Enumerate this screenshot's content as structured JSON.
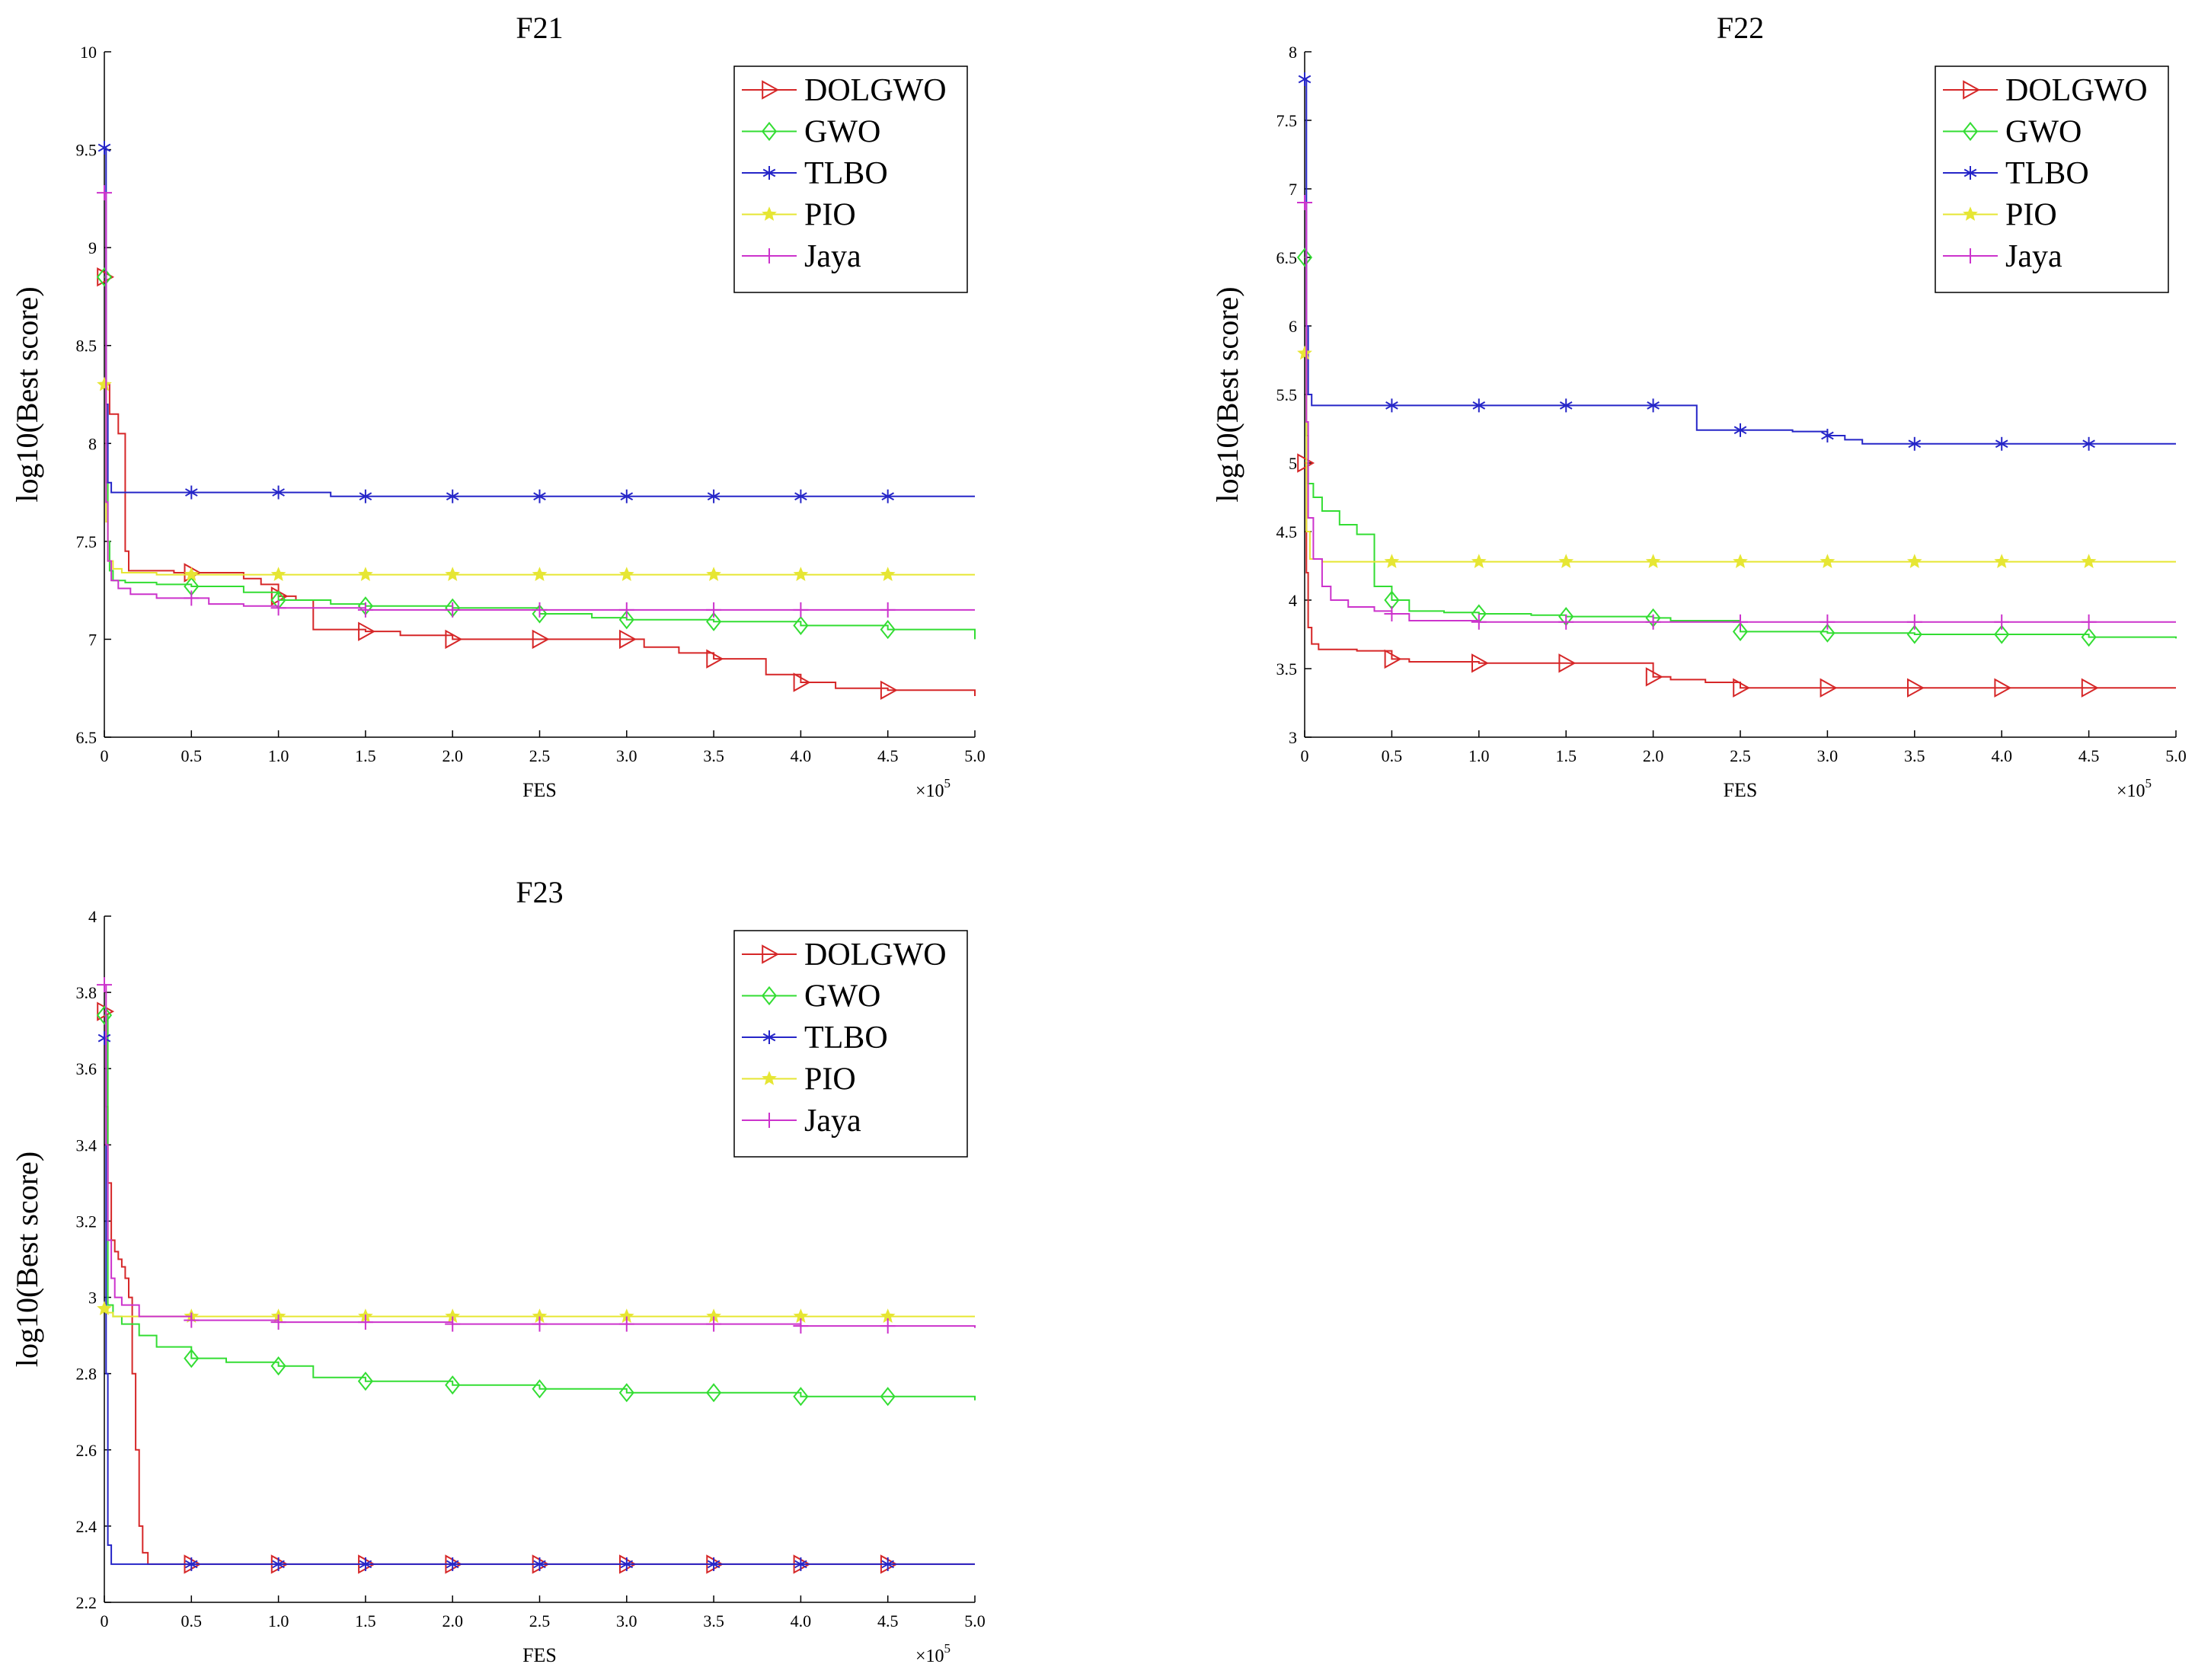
{
  "figure": {
    "layout": "2x2 grid of convergence plots, bottom-right empty"
  },
  "chart_data": [
    {
      "type": "line",
      "title": "F21",
      "xlabel": "FES",
      "ylabel": "log10(Best score)",
      "x_multiplier": "×10",
      "x_multiplier_exp": "5",
      "xlim": [
        0,
        5.0
      ],
      "ylim": [
        6.5,
        10
      ],
      "xticks": [
        0,
        0.5,
        1.0,
        1.5,
        2.0,
        2.5,
        3.0,
        3.5,
        4.0,
        4.5,
        5.0
      ],
      "xtick_labels": [
        "0",
        "0.5",
        "1.0",
        "1.5",
        "2.0",
        "2.5",
        "3.0",
        "3.5",
        "4.0",
        "4.5",
        "5.0"
      ],
      "yticks": [
        6.5,
        7,
        7.5,
        8,
        8.5,
        9,
        9.5,
        10
      ],
      "ytick_labels": [
        "6.5",
        "7",
        "7.5",
        "8",
        "8.5",
        "9",
        "9.5",
        "10"
      ],
      "legend_position": "top-right",
      "series": [
        {
          "name": "DOLGWO",
          "color": "#d62728",
          "marker": "triangle-right",
          "x": [
            0,
            0.01,
            0.03,
            0.05,
            0.08,
            0.1,
            0.12,
            0.14,
            0.2,
            0.4,
            0.6,
            0.8,
            0.9,
            1.0,
            1.1,
            1.2,
            1.5,
            1.7,
            2.0,
            2.5,
            3.0,
            3.1,
            3.3,
            3.5,
            3.8,
            4.0,
            4.2,
            4.5,
            5.0
          ],
          "y": [
            8.85,
            8.3,
            8.15,
            8.15,
            8.05,
            8.05,
            7.45,
            7.35,
            7.35,
            7.34,
            7.34,
            7.31,
            7.28,
            7.22,
            7.2,
            7.05,
            7.04,
            7.02,
            7.0,
            7.0,
            7.0,
            6.96,
            6.93,
            6.9,
            6.82,
            6.78,
            6.75,
            6.74,
            6.71
          ],
          "marker_x": [
            0,
            0.5,
            1.0,
            1.5,
            2.0,
            2.5,
            3.0,
            3.5,
            4.0,
            4.5
          ]
        },
        {
          "name": "GWO",
          "color": "#33dd33",
          "marker": "diamond",
          "x": [
            0,
            0.01,
            0.02,
            0.03,
            0.05,
            0.08,
            0.12,
            0.3,
            0.5,
            0.8,
            1.0,
            1.3,
            1.5,
            2.0,
            2.5,
            2.8,
            3.0,
            3.5,
            4.0,
            4.5,
            5.0
          ],
          "y": [
            8.85,
            7.8,
            7.5,
            7.35,
            7.3,
            7.3,
            7.29,
            7.28,
            7.27,
            7.24,
            7.2,
            7.18,
            7.17,
            7.16,
            7.13,
            7.11,
            7.1,
            7.09,
            7.07,
            7.05,
            7.0
          ],
          "marker_x": [
            0,
            0.5,
            1.0,
            1.5,
            2.0,
            2.5,
            3.0,
            3.5,
            4.0,
            4.5
          ]
        },
        {
          "name": "TLBO",
          "color": "#2626c8",
          "marker": "asterisk",
          "x": [
            0,
            0.01,
            0.02,
            0.04,
            0.1,
            1.0,
            1.3,
            5.0
          ],
          "y": [
            9.51,
            8.2,
            7.8,
            7.75,
            7.75,
            7.75,
            7.73,
            7.73
          ],
          "marker_x": [
            0,
            0.5,
            1.0,
            1.5,
            2.0,
            2.5,
            3.0,
            3.5,
            4.0,
            4.5
          ]
        },
        {
          "name": "PIO",
          "color": "#e6e633",
          "marker": "star",
          "x": [
            0,
            0.01,
            0.02,
            0.05,
            0.1,
            0.3,
            0.5,
            5.0
          ],
          "y": [
            8.3,
            7.6,
            7.4,
            7.36,
            7.34,
            7.33,
            7.33,
            7.33
          ],
          "marker_x": [
            0,
            0.5,
            1.0,
            1.5,
            2.0,
            2.5,
            3.0,
            3.5,
            4.0,
            4.5
          ]
        },
        {
          "name": "Jaya",
          "color": "#cc33cc",
          "marker": "plus",
          "x": [
            0,
            0.01,
            0.02,
            0.04,
            0.08,
            0.15,
            0.3,
            0.5,
            0.6,
            0.8,
            1.0,
            1.5,
            2.0,
            3.0,
            5.0
          ],
          "y": [
            9.28,
            7.7,
            7.4,
            7.3,
            7.26,
            7.23,
            7.21,
            7.21,
            7.18,
            7.17,
            7.16,
            7.15,
            7.15,
            7.15,
            7.15
          ],
          "marker_x": [
            0,
            0.5,
            1.0,
            1.5,
            2.0,
            2.5,
            3.0,
            3.5,
            4.0,
            4.5
          ]
        }
      ]
    },
    {
      "type": "line",
      "title": "F22",
      "xlabel": "FES",
      "ylabel": "log10(Best score)",
      "x_multiplier": "×10",
      "x_multiplier_exp": "5",
      "xlim": [
        0,
        5.0
      ],
      "ylim": [
        3,
        8
      ],
      "xticks": [
        0,
        0.5,
        1.0,
        1.5,
        2.0,
        2.5,
        3.0,
        3.5,
        4.0,
        4.5,
        5.0
      ],
      "xtick_labels": [
        "0",
        "0.5",
        "1.0",
        "1.5",
        "2.0",
        "2.5",
        "3.0",
        "3.5",
        "4.0",
        "4.5",
        "5.0"
      ],
      "yticks": [
        3,
        3.5,
        4,
        4.5,
        5,
        5.5,
        6,
        6.5,
        7,
        7.5,
        8
      ],
      "ytick_labels": [
        "3",
        "3.5",
        "4",
        "4.5",
        "5",
        "5.5",
        "6",
        "6.5",
        "7",
        "7.5",
        "8"
      ],
      "legend_position": "top-right",
      "series": [
        {
          "name": "DOLGWO",
          "color": "#d62728",
          "marker": "triangle-right",
          "x": [
            0,
            0.01,
            0.02,
            0.04,
            0.08,
            0.3,
            0.5,
            0.6,
            1.0,
            1.5,
            2.0,
            2.1,
            2.3,
            2.5,
            5.0
          ],
          "y": [
            5.0,
            4.2,
            3.8,
            3.68,
            3.64,
            3.63,
            3.57,
            3.55,
            3.54,
            3.54,
            3.44,
            3.42,
            3.4,
            3.36,
            3.36
          ],
          "marker_x": [
            0,
            0.5,
            1.0,
            1.5,
            2.0,
            2.5,
            3.0,
            3.5,
            4.0,
            4.5
          ]
        },
        {
          "name": "GWO",
          "color": "#33dd33",
          "marker": "diamond",
          "x": [
            0,
            0.01,
            0.02,
            0.05,
            0.1,
            0.2,
            0.3,
            0.4,
            0.5,
            0.6,
            0.8,
            1.0,
            1.3,
            1.5,
            2.0,
            2.1,
            2.5,
            3.0,
            3.5,
            4.0,
            4.5,
            5.0
          ],
          "y": [
            6.5,
            5.2,
            4.85,
            4.75,
            4.65,
            4.55,
            4.48,
            4.1,
            4.0,
            3.92,
            3.91,
            3.9,
            3.89,
            3.88,
            3.87,
            3.85,
            3.77,
            3.76,
            3.75,
            3.75,
            3.73,
            3.72
          ],
          "marker_x": [
            0,
            0.5,
            1.0,
            1.5,
            2.0,
            2.5,
            3.0,
            3.5,
            4.0,
            4.5
          ]
        },
        {
          "name": "TLBO",
          "color": "#2626c8",
          "marker": "asterisk",
          "x": [
            0,
            0.01,
            0.02,
            0.04,
            2.2,
            2.25,
            2.8,
            3.0,
            3.1,
            3.2,
            5.0
          ],
          "y": [
            7.8,
            6.0,
            5.5,
            5.42,
            5.42,
            5.24,
            5.23,
            5.2,
            5.17,
            5.14,
            5.14
          ],
          "marker_x": [
            0,
            0.5,
            1.0,
            1.5,
            2.0,
            2.5,
            3.0,
            3.5,
            4.0,
            4.5
          ]
        },
        {
          "name": "PIO",
          "color": "#e6e633",
          "marker": "star",
          "x": [
            0,
            0.01,
            0.03,
            0.1,
            5.0
          ],
          "y": [
            5.8,
            4.5,
            4.3,
            4.28,
            4.28
          ],
          "marker_x": [
            0,
            0.5,
            1.0,
            1.5,
            2.0,
            2.5,
            3.0,
            3.5,
            4.0,
            4.5
          ]
        },
        {
          "name": "Jaya",
          "color": "#cc33cc",
          "marker": "plus",
          "x": [
            0,
            0.01,
            0.02,
            0.05,
            0.1,
            0.15,
            0.25,
            0.4,
            0.5,
            0.6,
            1.0,
            2.0,
            5.0
          ],
          "y": [
            6.9,
            5.3,
            4.6,
            4.3,
            4.1,
            4.0,
            3.95,
            3.92,
            3.9,
            3.85,
            3.84,
            3.84,
            3.84
          ],
          "marker_x": [
            0,
            0.5,
            1.0,
            1.5,
            2.0,
            2.5,
            3.0,
            3.5,
            4.0,
            4.5
          ]
        }
      ]
    },
    {
      "type": "line",
      "title": "F23",
      "xlabel": "FES",
      "ylabel": "log10(Best score)",
      "x_multiplier": "×10",
      "x_multiplier_exp": "5",
      "xlim": [
        0,
        5.0
      ],
      "ylim": [
        2.2,
        4
      ],
      "xticks": [
        0,
        0.5,
        1.0,
        1.5,
        2.0,
        2.5,
        3.0,
        3.5,
        4.0,
        4.5,
        5.0
      ],
      "xtick_labels": [
        "0",
        "0.5",
        "1.0",
        "1.5",
        "2.0",
        "2.5",
        "3.0",
        "3.5",
        "4.0",
        "4.5",
        "5.0"
      ],
      "yticks": [
        2.2,
        2.4,
        2.6,
        2.8,
        3,
        3.2,
        3.4,
        3.6,
        3.8,
        4
      ],
      "ytick_labels": [
        "2.2",
        "2.4",
        "2.6",
        "2.8",
        "3",
        "3.2",
        "3.4",
        "3.6",
        "3.8",
        "4"
      ],
      "legend_position": "top-right",
      "series": [
        {
          "name": "DOLGWO",
          "color": "#d62728",
          "marker": "triangle-right",
          "x": [
            0,
            0.01,
            0.02,
            0.04,
            0.06,
            0.08,
            0.1,
            0.12,
            0.14,
            0.16,
            0.18,
            0.2,
            0.22,
            0.25,
            0.3,
            5.0
          ],
          "y": [
            3.75,
            3.5,
            3.3,
            3.15,
            3.12,
            3.1,
            3.08,
            3.05,
            3.0,
            2.8,
            2.6,
            2.4,
            2.33,
            2.3,
            2.3,
            2.3
          ],
          "marker_x": [
            0,
            0.5,
            1.0,
            1.5,
            2.0,
            2.5,
            3.0,
            3.5,
            4.0,
            4.5
          ]
        },
        {
          "name": "GWO",
          "color": "#33dd33",
          "marker": "diamond",
          "x": [
            0,
            0.02,
            0.05,
            0.1,
            0.2,
            0.3,
            0.5,
            0.7,
            1.0,
            1.2,
            1.5,
            2.0,
            2.5,
            3.0,
            3.5,
            4.0,
            4.5,
            5.0
          ],
          "y": [
            3.74,
            2.98,
            2.95,
            2.93,
            2.9,
            2.87,
            2.84,
            2.83,
            2.82,
            2.79,
            2.78,
            2.77,
            2.76,
            2.75,
            2.75,
            2.74,
            2.74,
            2.73
          ],
          "marker_x": [
            0,
            0.5,
            1.0,
            1.5,
            2.0,
            2.5,
            3.0,
            3.5,
            4.0,
            4.5
          ]
        },
        {
          "name": "TLBO",
          "color": "#2626c8",
          "marker": "asterisk",
          "x": [
            0,
            0.01,
            0.02,
            0.04,
            5.0
          ],
          "y": [
            3.68,
            2.8,
            2.35,
            2.3,
            2.3
          ],
          "marker_x": [
            0,
            0.5,
            1.0,
            1.5,
            2.0,
            2.5,
            3.0,
            3.5,
            4.0,
            4.5
          ]
        },
        {
          "name": "PIO",
          "color": "#e6e633",
          "marker": "star",
          "x": [
            0,
            0.02,
            0.05,
            0.1,
            5.0
          ],
          "y": [
            2.97,
            2.96,
            2.95,
            2.95,
            2.95
          ],
          "marker_x": [
            0,
            0.5,
            1.0,
            1.5,
            2.0,
            2.5,
            3.0,
            3.5,
            4.0,
            4.5
          ]
        },
        {
          "name": "Jaya",
          "color": "#cc33cc",
          "marker": "plus",
          "x": [
            0,
            0.01,
            0.02,
            0.04,
            0.06,
            0.1,
            0.2,
            0.5,
            1.0,
            2.0,
            3.0,
            4.0,
            5.0
          ],
          "y": [
            3.82,
            3.4,
            3.15,
            3.05,
            3.0,
            2.98,
            2.95,
            2.94,
            2.935,
            2.93,
            2.93,
            2.925,
            2.92
          ],
          "marker_x": [
            0,
            0.5,
            1.0,
            1.5,
            2.0,
            2.5,
            3.0,
            3.5,
            4.0,
            4.5
          ]
        }
      ]
    }
  ]
}
